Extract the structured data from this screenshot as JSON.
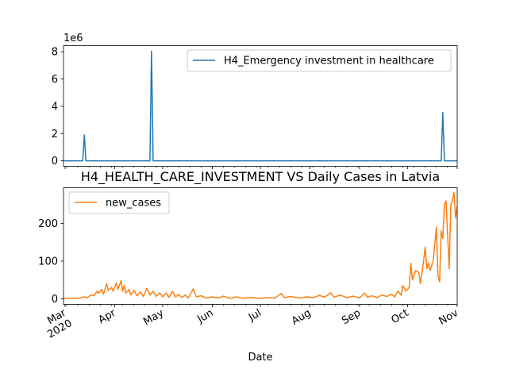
{
  "chart_data": [
    {
      "type": "line",
      "title": "",
      "xlabel": "",
      "ylabel": "",
      "offset_label": "1e6",
      "yticks": [
        0,
        2,
        4,
        6,
        8
      ],
      "ylim": [
        -0.4,
        8.45
      ],
      "xlim": [
        "2020-02-29",
        "2020-11-01"
      ],
      "grid": false,
      "legend_position": "top-right",
      "series": [
        {
          "name": "H4_Emergency investment in healthcare",
          "color": "#1f77b4",
          "points": [
            [
              "2020-02-29",
              0
            ],
            [
              "2020-03-12",
              0
            ],
            [
              "2020-03-13",
              1.9
            ],
            [
              "2020-03-14",
              0
            ],
            [
              "2020-04-23",
              0
            ],
            [
              "2020-04-24",
              8.05
            ],
            [
              "2020-04-25",
              0
            ],
            [
              "2020-10-22",
              0
            ],
            [
              "2020-10-23",
              3.55
            ],
            [
              "2020-10-24",
              0
            ],
            [
              "2020-11-01",
              0
            ]
          ]
        }
      ]
    },
    {
      "type": "line",
      "title": "H4_HEALTH_CARE_INVESTMENT VS Daily Cases in Latvia",
      "xlabel": "Date",
      "ylabel": "",
      "yticks": [
        0,
        100,
        200
      ],
      "ylim": [
        -15,
        295
      ],
      "xlim": [
        "2020-02-29",
        "2020-11-01"
      ],
      "grid": false,
      "legend_position": "top-left",
      "x_tick_labels": [
        {
          "date": "2020-03-01",
          "label": "Mar\n2020"
        },
        {
          "date": "2020-04-01",
          "label": "Apr"
        },
        {
          "date": "2020-05-01",
          "label": "May"
        },
        {
          "date": "2020-06-01",
          "label": "Jun"
        },
        {
          "date": "2020-07-01",
          "label": "Jul"
        },
        {
          "date": "2020-08-01",
          "label": "Aug"
        },
        {
          "date": "2020-09-01",
          "label": "Sep"
        },
        {
          "date": "2020-10-01",
          "label": "Oct"
        },
        {
          "date": "2020-11-01",
          "label": "Nov"
        }
      ],
      "series": [
        {
          "name": "new_cases",
          "color": "#ff7f0e",
          "points": [
            [
              "2020-02-29",
              0
            ],
            [
              "2020-03-05",
              1
            ],
            [
              "2020-03-10",
              2
            ],
            [
              "2020-03-13",
              5
            ],
            [
              "2020-03-15",
              3
            ],
            [
              "2020-03-17",
              10
            ],
            [
              "2020-03-19",
              8
            ],
            [
              "2020-03-21",
              20
            ],
            [
              "2020-03-22",
              15
            ],
            [
              "2020-03-24",
              25
            ],
            [
              "2020-03-25",
              12
            ],
            [
              "2020-03-27",
              40
            ],
            [
              "2020-03-28",
              22
            ],
            [
              "2020-03-30",
              30
            ],
            [
              "2020-03-31",
              20
            ],
            [
              "2020-04-02",
              42
            ],
            [
              "2020-04-03",
              25
            ],
            [
              "2020-04-05",
              48
            ],
            [
              "2020-04-06",
              20
            ],
            [
              "2020-04-07",
              35
            ],
            [
              "2020-04-08",
              15
            ],
            [
              "2020-04-10",
              25
            ],
            [
              "2020-04-11",
              10
            ],
            [
              "2020-04-13",
              22
            ],
            [
              "2020-04-15",
              8
            ],
            [
              "2020-04-17",
              18
            ],
            [
              "2020-04-19",
              6
            ],
            [
              "2020-04-21",
              28
            ],
            [
              "2020-04-23",
              10
            ],
            [
              "2020-04-25",
              20
            ],
            [
              "2020-04-27",
              6
            ],
            [
              "2020-04-29",
              16
            ],
            [
              "2020-05-01",
              5
            ],
            [
              "2020-05-03",
              15
            ],
            [
              "2020-05-05",
              4
            ],
            [
              "2020-05-07",
              20
            ],
            [
              "2020-05-09",
              5
            ],
            [
              "2020-05-11",
              12
            ],
            [
              "2020-05-13",
              3
            ],
            [
              "2020-05-15",
              10
            ],
            [
              "2020-05-17",
              2
            ],
            [
              "2020-05-20",
              26
            ],
            [
              "2020-05-22",
              5
            ],
            [
              "2020-05-25",
              8
            ],
            [
              "2020-05-28",
              2
            ],
            [
              "2020-06-01",
              5
            ],
            [
              "2020-06-05",
              2
            ],
            [
              "2020-06-08",
              7
            ],
            [
              "2020-06-12",
              1
            ],
            [
              "2020-06-16",
              5
            ],
            [
              "2020-06-20",
              1
            ],
            [
              "2020-06-25",
              4
            ],
            [
              "2020-06-30",
              1
            ],
            [
              "2020-07-05",
              3
            ],
            [
              "2020-07-10",
              2
            ],
            [
              "2020-07-14",
              14
            ],
            [
              "2020-07-16",
              3
            ],
            [
              "2020-07-20",
              6
            ],
            [
              "2020-07-25",
              2
            ],
            [
              "2020-07-30",
              5
            ],
            [
              "2020-08-03",
              3
            ],
            [
              "2020-08-07",
              9
            ],
            [
              "2020-08-10",
              4
            ],
            [
              "2020-08-14",
              16
            ],
            [
              "2020-08-16",
              4
            ],
            [
              "2020-08-20",
              10
            ],
            [
              "2020-08-24",
              3
            ],
            [
              "2020-08-28",
              7
            ],
            [
              "2020-09-01",
              2
            ],
            [
              "2020-09-04",
              15
            ],
            [
              "2020-09-06",
              4
            ],
            [
              "2020-09-09",
              8
            ],
            [
              "2020-09-12",
              3
            ],
            [
              "2020-09-15",
              10
            ],
            [
              "2020-09-18",
              6
            ],
            [
              "2020-09-21",
              12
            ],
            [
              "2020-09-23",
              5
            ],
            [
              "2020-09-25",
              20
            ],
            [
              "2020-09-27",
              10
            ],
            [
              "2020-09-28",
              35
            ],
            [
              "2020-09-30",
              20
            ],
            [
              "2020-10-02",
              30
            ],
            [
              "2020-10-03",
              95
            ],
            [
              "2020-10-04",
              50
            ],
            [
              "2020-10-06",
              75
            ],
            [
              "2020-10-08",
              70
            ],
            [
              "2020-10-09",
              40
            ],
            [
              "2020-10-11",
              100
            ],
            [
              "2020-10-12",
              138
            ],
            [
              "2020-10-13",
              80
            ],
            [
              "2020-10-14",
              95
            ],
            [
              "2020-10-15",
              75
            ],
            [
              "2020-10-17",
              100
            ],
            [
              "2020-10-19",
              190
            ],
            [
              "2020-10-20",
              60
            ],
            [
              "2020-10-21",
              45
            ],
            [
              "2020-10-22",
              180
            ],
            [
              "2020-10-23",
              160
            ],
            [
              "2020-10-24",
              250
            ],
            [
              "2020-10-25",
              260
            ],
            [
              "2020-10-27",
              80
            ],
            [
              "2020-10-28",
              250
            ],
            [
              "2020-10-29",
              260
            ],
            [
              "2020-10-30",
              283
            ],
            [
              "2020-10-31",
              215
            ],
            [
              "2020-11-01",
              245
            ]
          ]
        }
      ]
    }
  ]
}
